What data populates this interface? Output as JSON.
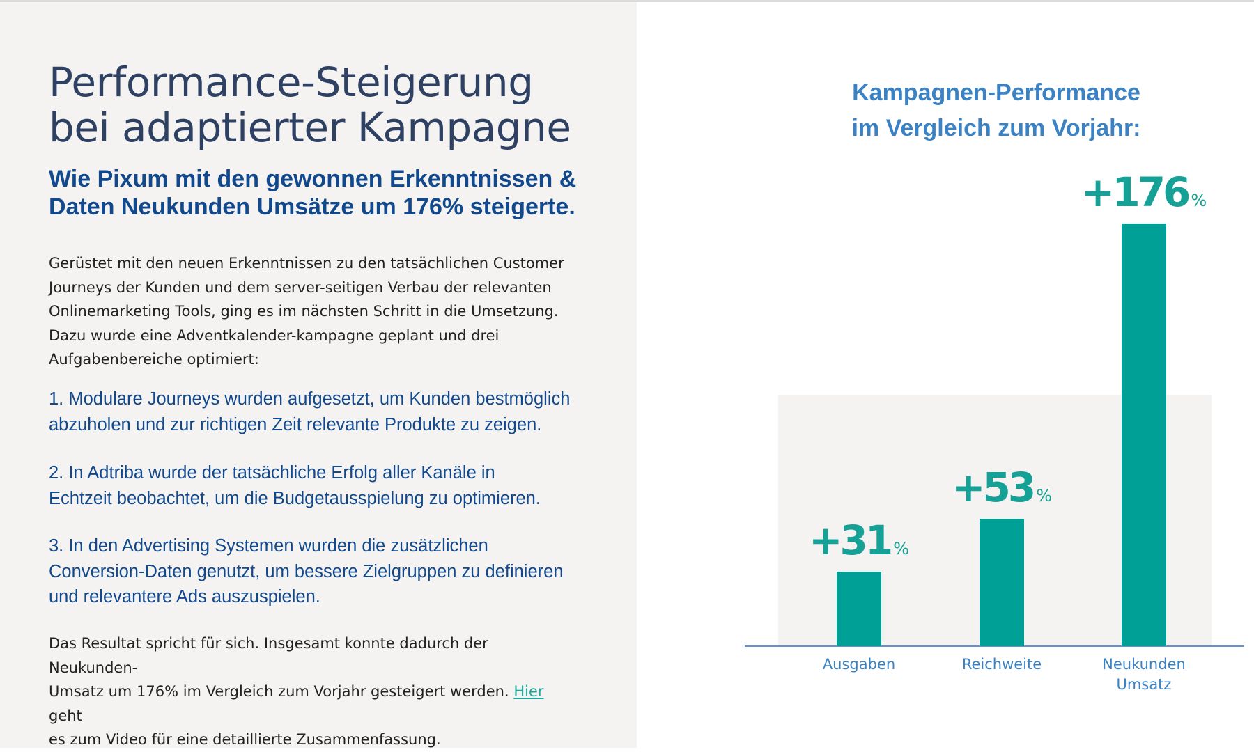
{
  "left": {
    "title_line1": "Performance-Steigerung",
    "title_line2": "bei adaptierter Kampagne",
    "subtitle_line1": "Wie Pixum mit den gewonnen Erkenntnissen &",
    "subtitle_line2": "Daten Neukunden Umsätze um 176% steigerte.",
    "intro_lines": [
      "Gerüstet mit den neuen Erkenntnissen zu den tatsächlichen Customer",
      "Journeys der Kunden und dem server-seitigen Verbau der relevanten",
      "Onlinemarketing Tools, ging es im nächsten Schritt in die Umsetzung.",
      "Dazu wurde eine Adventkalender-kampagne geplant und drei",
      "Aufgabenbereiche optimiert:"
    ],
    "steps": [
      [
        "1. Modulare Journeys wurden aufgesetzt, um Kunden bestmöglich",
        "abzuholen und zur richtigen Zeit relevante Produkte zu zeigen."
      ],
      [
        "2. In  Adtriba wurde der tatsächliche Erfolg aller Kanäle in",
        "Echtzeit beobachtet, um die Budgetausspielung zu optimieren."
      ],
      [
        "3. In den Advertising Systemen wurden die zusätzlichen",
        "Conversion-Daten genutzt, um bessere Zielgruppen zu definieren",
        "und relevantere Ads auszuspielen."
      ]
    ],
    "result": {
      "line1": "Das Resultat spricht für sich. Insgesamt konnte dadurch der Neukunden-",
      "line2_before": "Umsatz um 176% im Vergleich zum Vorjahr gesteigert werden. ",
      "link": "Hier",
      "line2_after": " geht",
      "line3": "es zum Video für eine detaillierte Zusammenfassung."
    }
  },
  "colors": {
    "bar": "#00a096",
    "value_label": "#16a196",
    "axis": "#5c93d6",
    "category_label": "#3b82c4",
    "plot_background": "#f4f3f1"
  },
  "chart_data": {
    "type": "bar",
    "title_lines": [
      "Kampagnen-Performance",
      "im Vergleich zum Vorjahr:"
    ],
    "categories": [
      [
        "Ausgaben"
      ],
      [
        "Reichweite"
      ],
      [
        "Neukunden",
        "Umsatz"
      ]
    ],
    "values": [
      31,
      53,
      176
    ],
    "value_prefix": "+",
    "value_suffix": "%",
    "ylim": [
      0,
      176
    ],
    "grid": false
  }
}
